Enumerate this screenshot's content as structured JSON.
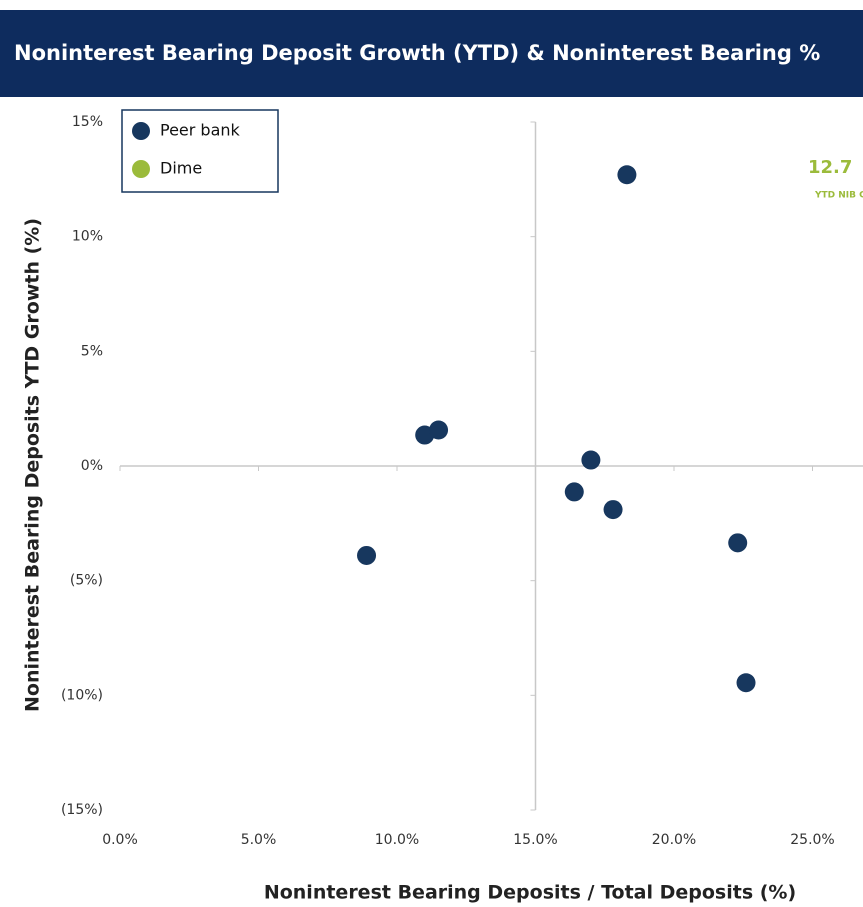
{
  "chart_data": {
    "type": "scatter",
    "title": "Noninterest Bearing Deposit Growth (YTD) & Noninterest Bearing %",
    "x_label": "Noninterest Bearing Deposits / Total Deposits (%)",
    "y_label": "Noninterest Bearing Deposits YTD Growth (%)",
    "annotations": [
      "12.7",
      "YTD NIB G"
    ],
    "series": [
      {
        "name": "Peer bank",
        "color": "#17375e",
        "x": [
          18.3,
          11.0,
          11.5,
          17.0,
          16.4,
          17.8,
          8.9,
          22.3,
          22.6
        ],
        "y": [
          12.7,
          1.35,
          1.57,
          0.26,
          -1.13,
          -1.9,
          -3.9,
          -3.35,
          -9.45
        ]
      },
      {
        "name": "Dime",
        "color": "#9bbb3b",
        "x": [],
        "y": []
      }
    ],
    "xlim": [
      0,
      30
    ],
    "ylim": [
      -15,
      15
    ],
    "xticks": [
      {
        "value": 0,
        "label": "0.0%"
      },
      {
        "value": 5,
        "label": "5.0%"
      },
      {
        "value": 10,
        "label": "10.0%"
      },
      {
        "value": 15,
        "label": "15.0%"
      },
      {
        "value": 20,
        "label": "20.0%"
      },
      {
        "value": 25,
        "label": "25.0%"
      }
    ],
    "yticks": [
      {
        "value": 15,
        "label": "15%"
      },
      {
        "value": 10,
        "label": "10%"
      },
      {
        "value": 5,
        "label": "5%"
      },
      {
        "value": 0,
        "label": "0%"
      },
      {
        "value": -5,
        "label": "(5%)"
      },
      {
        "value": -10,
        "label": "(10%)"
      },
      {
        "value": -15,
        "label": "(15%)"
      }
    ],
    "x_axis_position": 0,
    "y_axis_position": 15,
    "legend": "upper left"
  }
}
